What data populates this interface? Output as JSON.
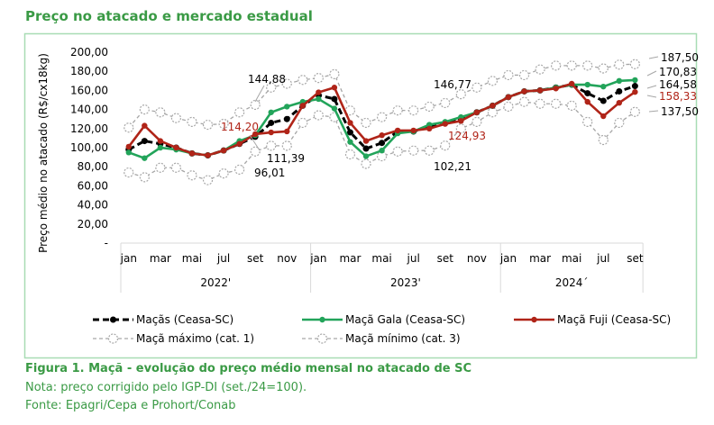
{
  "header": {
    "title": "Preço no atacado e mercado estadual"
  },
  "caption": {
    "figure": "Figura 1. Maçã - evolução do preço médio mensal no atacado de SC",
    "note": "Nota: preço corrigido pelo IGP-DI (set./24=100).",
    "source": "Fonte: Epagri/Cepa e Prohort/Conab"
  },
  "chart_data": {
    "type": "line",
    "title": "",
    "ylabel": "Preço médio no atacado (R$/cx18kg)",
    "xlabel": "",
    "ylim": [
      0,
      200
    ],
    "yticks": [
      "-",
      "20,00",
      "40,00",
      "60,00",
      "80,00",
      "100,00",
      "120,00",
      "140,00",
      "160,00",
      "180,00",
      "200,00"
    ],
    "month_ticks": [
      "jan",
      "mar",
      "mai",
      "jul",
      "set",
      "nov",
      "jan",
      "mar",
      "mai",
      "jul",
      "set",
      "nov",
      "jan",
      "mar",
      "mai",
      "jul",
      "set"
    ],
    "years": [
      {
        "label": "2022'",
        "months": 12
      },
      {
        "label": "2023'",
        "months": 12
      },
      {
        "label": "2024´",
        "months": 9
      }
    ],
    "legend_position": "bottom",
    "series": [
      {
        "name": "Maçã máximo (cat. 1)",
        "color": "#a6a6a6",
        "style": "max",
        "values": [
          121,
          140,
          137,
          131,
          127,
          124,
          125,
          137,
          144.88,
          163,
          167,
          171,
          173,
          177,
          139,
          126,
          132,
          139,
          139,
          143,
          146.77,
          156,
          163,
          170,
          176,
          176,
          182,
          186,
          186,
          186,
          183,
          187,
          187.5
        ]
      },
      {
        "name": "Maçã mínimo (cat. 3)",
        "color": "#a6a6a6",
        "style": "min",
        "values": [
          74,
          69,
          79,
          79,
          71,
          66,
          73,
          77,
          96.01,
          102,
          102,
          126,
          134,
          132,
          93,
          83,
          91,
          96,
          97,
          97,
          102.21,
          120,
          127,
          137,
          143,
          148,
          146,
          146,
          144,
          127,
          108,
          126,
          137.5
        ]
      },
      {
        "name": "Maçãs (Ceasa-SC)",
        "color": "#000000",
        "style": "dash",
        "values": [
          98,
          107,
          104,
          100,
          94,
          92,
          97,
          104,
          111.39,
          126,
          130,
          144,
          155,
          151,
          116,
          99,
          105,
          117,
          117,
          122,
          126,
          130,
          137,
          144,
          153,
          159,
          160,
          163,
          166,
          157,
          149,
          159,
          164.58
        ]
      },
      {
        "name": "Maçã Gala (Ceasa-SC)",
        "color": "#22a45a",
        "style": "solid",
        "values": [
          95,
          89,
          100,
          98,
          94,
          92,
          97,
          107,
          113,
          137,
          143,
          148,
          151,
          141,
          106,
          91,
          97,
          115,
          117,
          124,
          127,
          132,
          137,
          144,
          153,
          159,
          160,
          163,
          166,
          166,
          164,
          170,
          170.83
        ]
      },
      {
        "name": "Maçã Fuji (Ceasa-SC)",
        "color": "#b02418",
        "style": "solid",
        "values": [
          101,
          123,
          107,
          100,
          94,
          92,
          97,
          104,
          114.2,
          116,
          117,
          144,
          158,
          163,
          126,
          107,
          113,
          118,
          118,
          120,
          124.93,
          128,
          137,
          144,
          153,
          159,
          160,
          162,
          167,
          148,
          133,
          147,
          158.33
        ]
      }
    ],
    "annotations": [
      {
        "text": "144,88",
        "color": "#000000"
      },
      {
        "text": "114,20",
        "color": "#b02418"
      },
      {
        "text": "111,39",
        "color": "#000000"
      },
      {
        "text": "96,01",
        "color": "#000000"
      },
      {
        "text": "146,77",
        "color": "#000000"
      },
      {
        "text": "124,93",
        "color": "#b02418"
      },
      {
        "text": "102,21",
        "color": "#000000"
      },
      {
        "text": "187,50",
        "color": "#000000"
      },
      {
        "text": "170,83",
        "color": "#000000"
      },
      {
        "text": "164,58",
        "color": "#000000"
      },
      {
        "text": "158,33",
        "color": "#b02418"
      },
      {
        "text": "137,50",
        "color": "#000000"
      }
    ]
  }
}
